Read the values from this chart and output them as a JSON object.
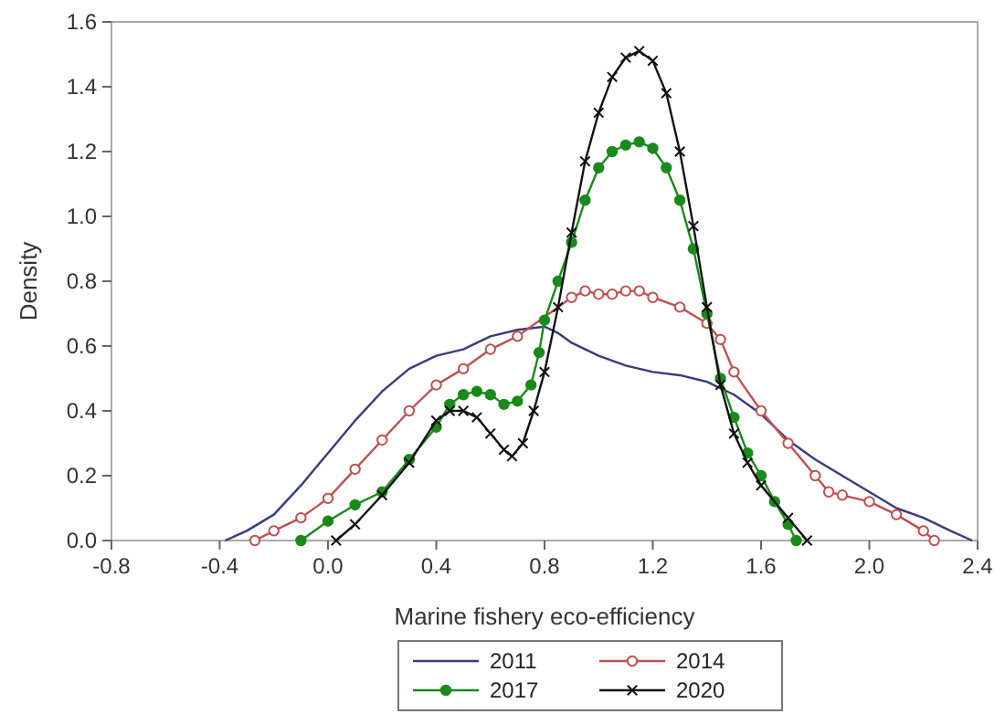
{
  "chart_data": {
    "type": "line",
    "xlabel": "Marine fishery eco-efficiency",
    "ylabel": "Density",
    "xlim": [
      -0.8,
      2.4
    ],
    "xticks": [
      {
        "value": -0.8,
        "label": "-0.8"
      },
      {
        "value": -0.4,
        "label": "-0.4"
      },
      {
        "value": 0,
        "label": "0.0"
      },
      {
        "value": 0.4,
        "label": "0.4"
      },
      {
        "value": 0.8,
        "label": "0.8"
      },
      {
        "value": 1.2,
        "label": "1.2"
      },
      {
        "value": 1.6,
        "label": "1.6"
      },
      {
        "value": 2,
        "label": "2.0"
      },
      {
        "value": 2.4,
        "label": "2.4"
      }
    ],
    "ylim": [
      0,
      1.6
    ],
    "yticks": [
      {
        "value": 0,
        "label": "0.0"
      },
      {
        "value": 0.2,
        "label": "0.2"
      },
      {
        "value": 0.4,
        "label": "0.4"
      },
      {
        "value": 0.6,
        "label": "0.6"
      },
      {
        "value": 0.8,
        "label": "0.8"
      },
      {
        "value": 1,
        "label": "1.0"
      },
      {
        "value": 1.2,
        "label": "1.2"
      },
      {
        "value": 1.4,
        "label": "1.4"
      },
      {
        "value": 1.6,
        "label": "1.6"
      }
    ],
    "grid": false,
    "legend": "bottom",
    "line_style": "solid",
    "series": [
      {
        "name": "2011",
        "color": "#3b3b7a",
        "marker": "none",
        "x": [
          -0.38,
          -0.3,
          -0.2,
          -0.1,
          0,
          0.1,
          0.2,
          0.3,
          0.4,
          0.5,
          0.6,
          0.7,
          0.8,
          0.85,
          0.9,
          1.0,
          1.1,
          1.2,
          1.3,
          1.4,
          1.5,
          1.6,
          1.7,
          1.8,
          1.9,
          2.0,
          2.1,
          2.2,
          2.3,
          2.38
        ],
        "values": [
          0,
          0.03,
          0.08,
          0.17,
          0.27,
          0.37,
          0.46,
          0.53,
          0.57,
          0.59,
          0.63,
          0.65,
          0.66,
          0.64,
          0.61,
          0.57,
          0.54,
          0.52,
          0.51,
          0.49,
          0.45,
          0.39,
          0.31,
          0.25,
          0.2,
          0.15,
          0.1,
          0.07,
          0.03,
          0
        ]
      },
      {
        "name": "2014",
        "color": "#c05050",
        "marker": "circle",
        "x": [
          -0.27,
          -0.2,
          -0.1,
          0,
          0.1,
          0.2,
          0.3,
          0.4,
          0.5,
          0.6,
          0.7,
          0.9,
          0.95,
          1.0,
          1.05,
          1.1,
          1.15,
          1.2,
          1.3,
          1.4,
          1.45,
          1.5,
          1.6,
          1.7,
          1.8,
          1.85,
          1.9,
          2.0,
          2.1,
          2.2,
          2.24
        ],
        "values": [
          0,
          0.03,
          0.07,
          0.13,
          0.22,
          0.31,
          0.4,
          0.48,
          0.53,
          0.59,
          0.63,
          0.75,
          0.77,
          0.76,
          0.76,
          0.77,
          0.77,
          0.75,
          0.72,
          0.67,
          0.62,
          0.52,
          0.4,
          0.3,
          0.2,
          0.15,
          0.14,
          0.12,
          0.08,
          0.03,
          0
        ]
      },
      {
        "name": "2017",
        "color": "#1a8a1a",
        "marker": "circle",
        "x": [
          -0.1,
          0,
          0.1,
          0.2,
          0.3,
          0.4,
          0.45,
          0.5,
          0.55,
          0.6,
          0.65,
          0.7,
          0.75,
          0.78,
          0.8,
          0.85,
          0.9,
          0.95,
          1.0,
          1.05,
          1.1,
          1.15,
          1.2,
          1.25,
          1.3,
          1.35,
          1.4,
          1.45,
          1.5,
          1.55,
          1.6,
          1.65,
          1.7,
          1.73
        ],
        "values": [
          0,
          0.06,
          0.11,
          0.15,
          0.25,
          0.35,
          0.42,
          0.45,
          0.46,
          0.45,
          0.42,
          0.43,
          0.48,
          0.58,
          0.68,
          0.8,
          0.92,
          1.05,
          1.15,
          1.2,
          1.22,
          1.23,
          1.21,
          1.15,
          1.05,
          0.9,
          0.7,
          0.5,
          0.38,
          0.27,
          0.2,
          0.12,
          0.05,
          0
        ]
      },
      {
        "name": "2020",
        "color": "#111111",
        "marker": "cross",
        "x": [
          0.03,
          0.1,
          0.2,
          0.3,
          0.4,
          0.45,
          0.5,
          0.55,
          0.6,
          0.65,
          0.68,
          0.72,
          0.76,
          0.8,
          0.85,
          0.9,
          0.95,
          1.0,
          1.05,
          1.1,
          1.15,
          1.2,
          1.25,
          1.3,
          1.35,
          1.4,
          1.45,
          1.5,
          1.55,
          1.6,
          1.7,
          1.77
        ],
        "values": [
          0,
          0.05,
          0.14,
          0.24,
          0.37,
          0.4,
          0.4,
          0.38,
          0.33,
          0.28,
          0.26,
          0.3,
          0.4,
          0.52,
          0.72,
          0.95,
          1.17,
          1.32,
          1.43,
          1.49,
          1.51,
          1.48,
          1.38,
          1.2,
          0.97,
          0.72,
          0.48,
          0.33,
          0.24,
          0.17,
          0.07,
          0
        ]
      }
    ]
  }
}
